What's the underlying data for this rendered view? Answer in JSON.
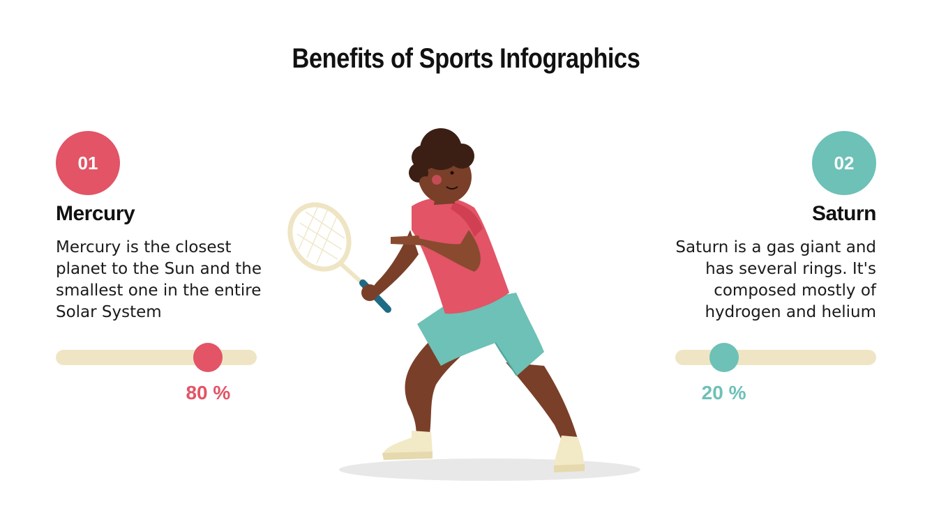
{
  "title": "Benefits of Sports Infographics",
  "colors": {
    "accent_red": "#e25466",
    "accent_teal": "#6dc1b6",
    "track": "#efe5c4",
    "text": "#111111"
  },
  "items": [
    {
      "number": "01",
      "heading": "Mercury",
      "description": "Mercury is the closest planet to the Sun and the smallest one in the entire Solar System",
      "percent_label": "80 %",
      "value": 0.8,
      "color": "#e25466"
    },
    {
      "number": "02",
      "heading": "Saturn",
      "description": "Saturn is a gas giant and has several rings. It's composed mostly of hydrogen and helium",
      "percent_label": "20 %",
      "value": 0.2,
      "color": "#6dc1b6"
    }
  ],
  "illustration": "tennis-player"
}
